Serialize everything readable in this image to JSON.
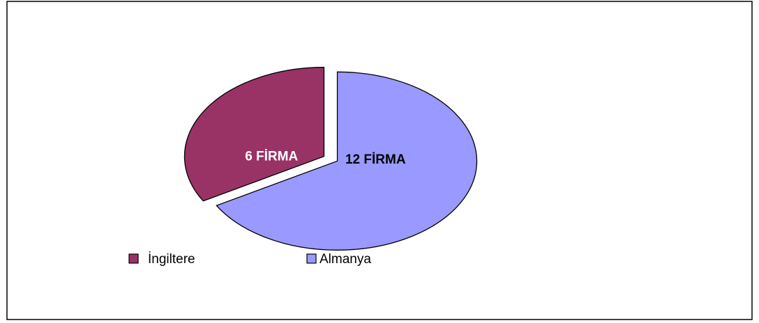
{
  "chart_data": {
    "type": "pie",
    "categories": [
      "İngiltere",
      "Almanya"
    ],
    "values": [
      6,
      12
    ],
    "value_labels": [
      "6 FİRMA",
      "12 FİRMA"
    ],
    "colors": [
      "#993366",
      "#9999ff"
    ],
    "legend": "bottom"
  }
}
